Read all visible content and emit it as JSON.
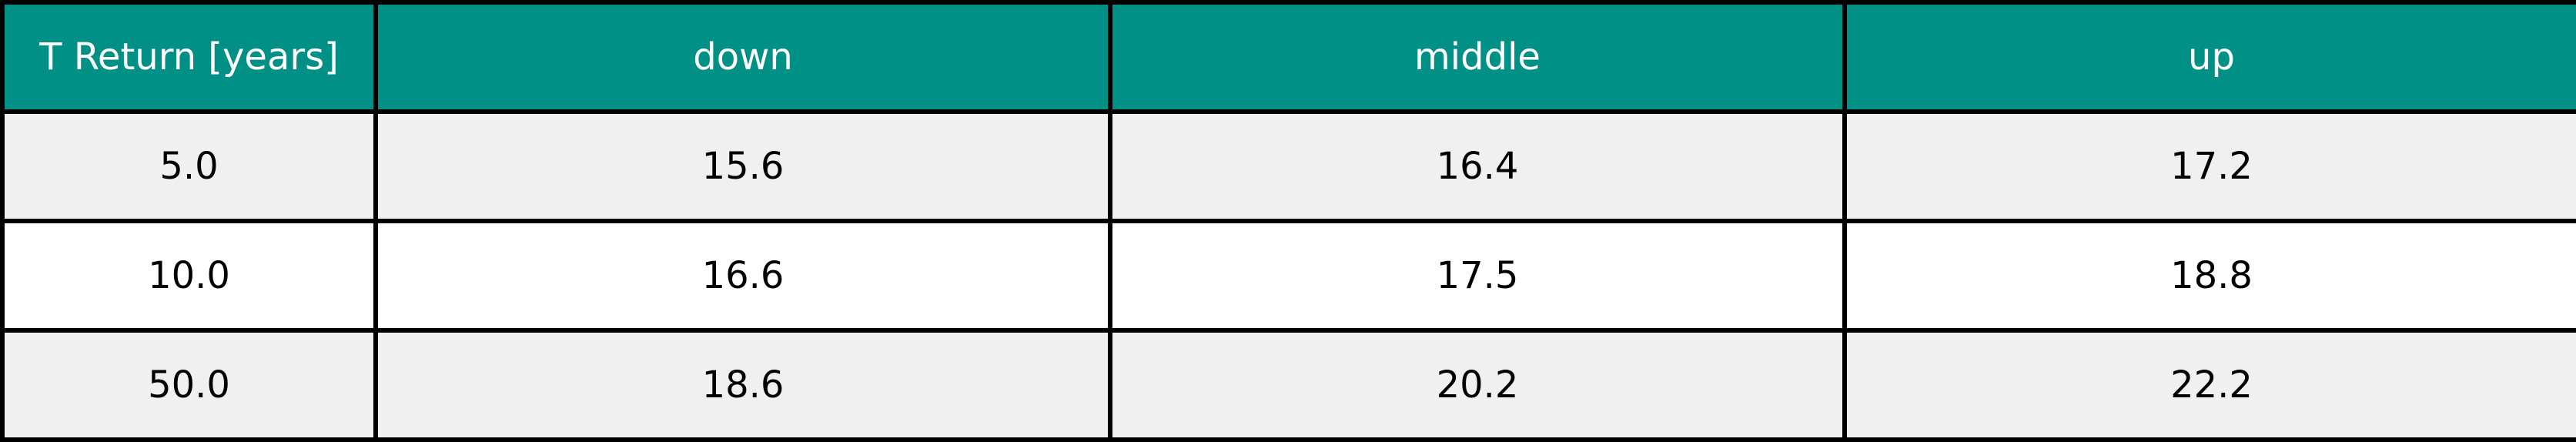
{
  "chart_data": {
    "type": "table",
    "columns": [
      "T Return [years]",
      "down",
      "middle",
      "up"
    ],
    "rows": [
      [
        "5.0",
        "15.6",
        "16.4",
        "17.2"
      ],
      [
        "10.0",
        "16.6",
        "17.5",
        "18.8"
      ],
      [
        "50.0",
        "18.6",
        "20.2",
        "22.2"
      ]
    ]
  },
  "colors": {
    "header_background": "#009086",
    "header_text": "#ffffff",
    "band_row": "#f0f0f0",
    "plain_row": "#ffffff",
    "border": "#000000"
  }
}
